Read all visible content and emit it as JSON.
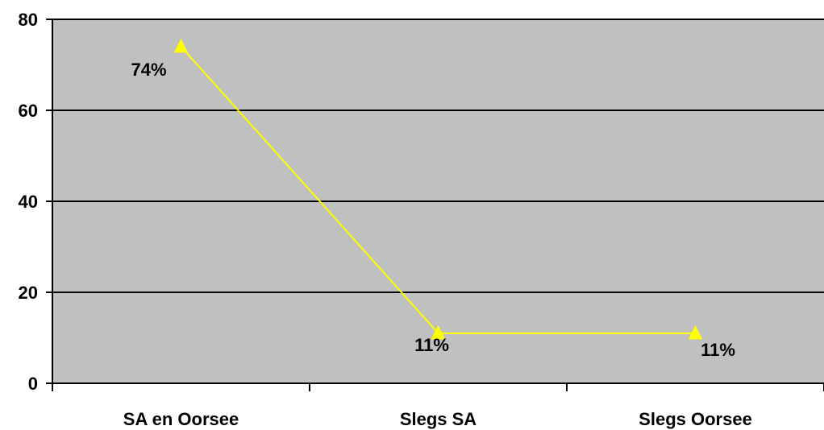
{
  "chart_data": {
    "type": "line",
    "categories": [
      "SA en Oorsee",
      "Slegs SA",
      "Slegs Oorsee"
    ],
    "series": [
      {
        "values": [
          74,
          11,
          11
        ],
        "data_labels": [
          "74%",
          "11%",
          "11%"
        ],
        "color": "#ffff00",
        "marker": "triangle"
      }
    ],
    "y_ticks": [
      0,
      20,
      40,
      60,
      80
    ],
    "ylim": [
      0,
      80
    ],
    "grid": true,
    "legend": "none",
    "colors": {
      "plot_background": "#c0c0c0",
      "gridline": "#000000",
      "axis": "#000000",
      "series_line": "#ffff00"
    }
  }
}
